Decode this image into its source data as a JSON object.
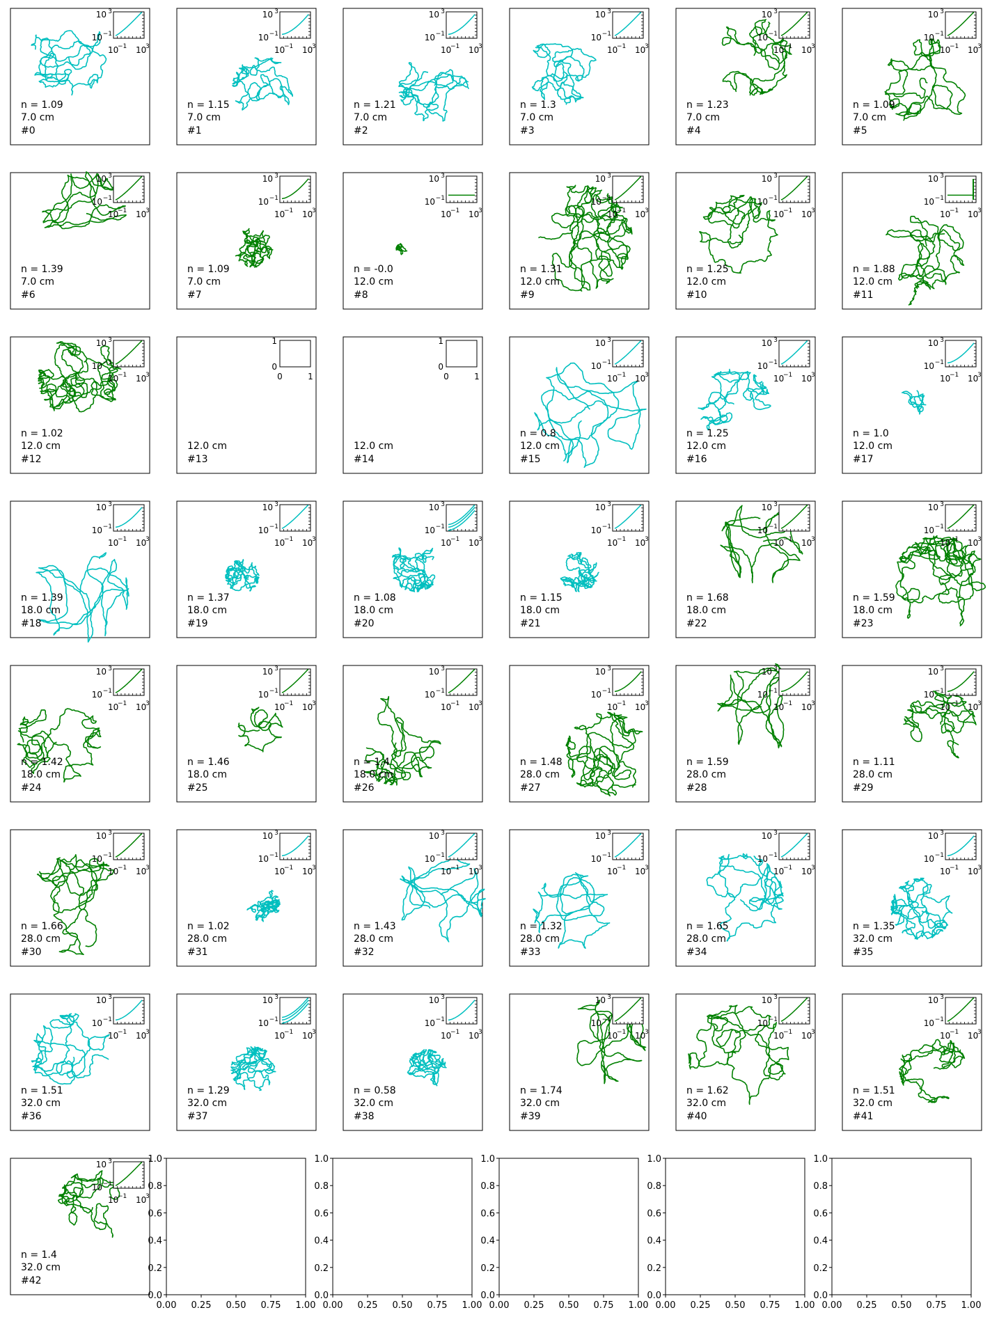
{
  "figure": {
    "colors": {
      "cyan": "#00BFBF",
      "green": "#008000",
      "axis": "#000000",
      "background": "#ffffff"
    },
    "inset_ticks": {
      "y_labels_loglog": [
        "10",
        "3",
        "10",
        "−1"
      ],
      "x_labels_loglog": [
        "10",
        "−1",
        "10",
        "3"
      ],
      "y_labels_empty": [
        "0",
        "1"
      ],
      "x_labels_empty": [
        "0",
        "1"
      ]
    },
    "empty_axes_ticks": [
      "0.0",
      "0.2",
      "0.4",
      "0.6",
      "0.8",
      "1.0"
    ],
    "empty_axes_xticks": [
      "0.00",
      "0.25",
      "0.50",
      "0.75",
      "1.00"
    ]
  },
  "chart_data": {
    "type": "line",
    "description_of_series": "grid of 2D trajectories with log-log MSD insets",
    "panels": [
      {
        "id": "#0",
        "n": "n = 1.09",
        "dist": "7.0 cm",
        "color": "cyan",
        "seed": 11,
        "style": "wander",
        "cx": 0.42,
        "cy": 0.35,
        "size": 0.28,
        "inset": "curve_a"
      },
      {
        "id": "#1",
        "n": "n = 1.15",
        "dist": "7.0 cm",
        "color": "cyan",
        "seed": 12,
        "style": "wander",
        "cx": 0.62,
        "cy": 0.58,
        "size": 0.22,
        "inset": "curve_b"
      },
      {
        "id": "#2",
        "n": "n = 1.21",
        "dist": "7.0 cm",
        "color": "cyan",
        "seed": 13,
        "style": "sparse",
        "cx": 0.65,
        "cy": 0.58,
        "size": 0.25,
        "inset": "curve_b"
      },
      {
        "id": "#3",
        "n": "n = 1.3",
        "dist": "7.0 cm",
        "color": "cyan",
        "seed": 14,
        "style": "wander",
        "cx": 0.38,
        "cy": 0.45,
        "size": 0.25,
        "inset": "curve_a"
      },
      {
        "id": "#4",
        "n": "n = 1.23",
        "dist": "7.0 cm",
        "color": "green",
        "seed": 15,
        "style": "wander",
        "cx": 0.55,
        "cy": 0.35,
        "size": 0.28,
        "inset": "curve_a"
      },
      {
        "id": "#5",
        "n": "n = 1.09",
        "dist": "7.0 cm",
        "color": "green",
        "seed": 16,
        "style": "wander",
        "cx": 0.62,
        "cy": 0.55,
        "size": 0.32,
        "inset": "curve_a"
      },
      {
        "id": "#6",
        "n": "n = 1.39",
        "dist": "7.0 cm",
        "color": "green",
        "seed": 17,
        "style": "line",
        "cx": 0.53,
        "cy": 0.3,
        "size": 0.3,
        "inset": "curve_a"
      },
      {
        "id": "#7",
        "n": "n = 1.09",
        "dist": "7.0 cm",
        "color": "green",
        "seed": 18,
        "style": "cluster",
        "cx": 0.55,
        "cy": 0.55,
        "size": 0.14,
        "inset": "curve_b"
      },
      {
        "id": "#8",
        "n": "n = -0.0",
        "dist": "12.0 cm",
        "color": "green",
        "seed": 19,
        "style": "tiny",
        "cx": 0.42,
        "cy": 0.56,
        "size": 0.04,
        "inset": "flat"
      },
      {
        "id": "#9",
        "n": "n = 1.31",
        "dist": "12.0 cm",
        "color": "green",
        "seed": 20,
        "style": "big",
        "cx": 0.5,
        "cy": 0.48,
        "size": 0.38,
        "inset": "curve_a"
      },
      {
        "id": "#10",
        "n": "n = 1.25",
        "dist": "12.0 cm",
        "color": "green",
        "seed": 21,
        "style": "wander",
        "cx": 0.45,
        "cy": 0.45,
        "size": 0.28,
        "inset": "curve_a"
      },
      {
        "id": "#11",
        "n": "n = 1.88",
        "dist": "12.0 cm",
        "color": "green",
        "seed": 22,
        "style": "split",
        "cx": 0.6,
        "cy": 0.55,
        "size": 0.3,
        "inset": "flat2"
      },
      {
        "id": "#12",
        "n": "n = 1.02",
        "dist": "12.0 cm",
        "color": "green",
        "seed": 23,
        "style": "big",
        "cx": 0.5,
        "cy": 0.3,
        "size": 0.3,
        "inset": "curve_a"
      },
      {
        "id": "#13",
        "n": "",
        "dist": "12.0 cm",
        "color": "none",
        "seed": 24,
        "style": "none",
        "cx": 0,
        "cy": 0,
        "size": 0,
        "inset": "empty"
      },
      {
        "id": "#14",
        "n": "",
        "dist": "12.0 cm",
        "color": "none",
        "seed": 25,
        "style": "none",
        "cx": 0,
        "cy": 0,
        "size": 0,
        "inset": "empty"
      },
      {
        "id": "#15",
        "n": "n = 0.8",
        "dist": "12.0 cm",
        "color": "cyan",
        "seed": 26,
        "style": "line",
        "cx": 0.58,
        "cy": 0.55,
        "size": 0.4,
        "inset": "curve_a"
      },
      {
        "id": "#16",
        "n": "n = 1.25",
        "dist": "12.0 cm",
        "color": "cyan",
        "seed": 27,
        "style": "wander",
        "cx": 0.42,
        "cy": 0.5,
        "size": 0.26,
        "inset": "curve_a"
      },
      {
        "id": "#17",
        "n": "n = 1.0",
        "dist": "12.0 cm",
        "color": "cyan",
        "seed": 28,
        "style": "tiny",
        "cx": 0.5,
        "cy": 0.48,
        "size": 0.1,
        "inset": "curve_b"
      },
      {
        "id": "#18",
        "n": "n = 1.39",
        "dist": "18.0 cm",
        "color": "cyan",
        "seed": 29,
        "style": "line",
        "cx": 0.5,
        "cy": 0.68,
        "size": 0.35,
        "inset": "curve_b"
      },
      {
        "id": "#19",
        "n": "n = 1.37",
        "dist": "18.0 cm",
        "color": "cyan",
        "seed": 30,
        "style": "cluster",
        "cx": 0.47,
        "cy": 0.55,
        "size": 0.12,
        "inset": "curve_a"
      },
      {
        "id": "#20",
        "n": "n = 1.08",
        "dist": "18.0 cm",
        "color": "cyan",
        "seed": 31,
        "style": "cluster",
        "cx": 0.52,
        "cy": 0.48,
        "size": 0.18,
        "inset": "multi"
      },
      {
        "id": "#21",
        "n": "n = 1.15",
        "dist": "18.0 cm",
        "color": "cyan",
        "seed": 32,
        "style": "cluster",
        "cx": 0.5,
        "cy": 0.52,
        "size": 0.14,
        "inset": "curve_a"
      },
      {
        "id": "#22",
        "n": "n = 1.68",
        "dist": "18.0 cm",
        "color": "green",
        "seed": 33,
        "style": "line",
        "cx": 0.62,
        "cy": 0.3,
        "size": 0.3,
        "inset": "curve_a"
      },
      {
        "id": "#23",
        "n": "n = 1.59",
        "dist": "18.0 cm",
        "color": "green",
        "seed": 34,
        "style": "big",
        "cx": 0.7,
        "cy": 0.6,
        "size": 0.34,
        "inset": "curve_a"
      },
      {
        "id": "#24",
        "n": "n = 1.42",
        "dist": "18.0 cm",
        "color": "green",
        "seed": 35,
        "style": "sparse",
        "cx": 0.35,
        "cy": 0.55,
        "size": 0.3,
        "inset": "curve_a"
      },
      {
        "id": "#25",
        "n": "n = 1.46",
        "dist": "18.0 cm",
        "color": "green",
        "seed": 36,
        "style": "loop",
        "cx": 0.6,
        "cy": 0.47,
        "size": 0.16,
        "inset": "curve_a"
      },
      {
        "id": "#26",
        "n": "n = 1.4",
        "dist": "18.0 cm",
        "color": "green",
        "seed": 37,
        "style": "sparse",
        "cx": 0.38,
        "cy": 0.55,
        "size": 0.32,
        "inset": "curve_a"
      },
      {
        "id": "#27",
        "n": "n = 1.48",
        "dist": "28.0 cm",
        "color": "green",
        "seed": 38,
        "style": "cluster",
        "cx": 0.7,
        "cy": 0.65,
        "size": 0.3,
        "inset": "curve_b"
      },
      {
        "id": "#28",
        "n": "n = 1.59",
        "dist": "28.0 cm",
        "color": "green",
        "seed": 39,
        "style": "line",
        "cx": 0.62,
        "cy": 0.3,
        "size": 0.32,
        "inset": "curve_b"
      },
      {
        "id": "#29",
        "n": "n = 1.11",
        "dist": "28.0 cm",
        "color": "green",
        "seed": 40,
        "style": "sparse",
        "cx": 0.7,
        "cy": 0.45,
        "size": 0.26,
        "inset": "curve_b"
      },
      {
        "id": "#30",
        "n": "n = 1.66",
        "dist": "28.0 cm",
        "color": "green",
        "seed": 41,
        "style": "sparse",
        "cx": 0.48,
        "cy": 0.55,
        "size": 0.36,
        "inset": "curve_a"
      },
      {
        "id": "#31",
        "n": "n = 1.02",
        "dist": "28.0 cm",
        "color": "cyan",
        "seed": 42,
        "style": "cluster",
        "cx": 0.62,
        "cy": 0.55,
        "size": 0.12,
        "inset": "curve_b"
      },
      {
        "id": "#32",
        "n": "n = 1.43",
        "dist": "28.0 cm",
        "color": "cyan",
        "seed": 43,
        "style": "line",
        "cx": 0.7,
        "cy": 0.5,
        "size": 0.32,
        "inset": "curve_a"
      },
      {
        "id": "#33",
        "n": "n = 1.32",
        "dist": "28.0 cm",
        "color": "cyan",
        "seed": 44,
        "style": "line",
        "cx": 0.45,
        "cy": 0.6,
        "size": 0.28,
        "inset": "curve_a"
      },
      {
        "id": "#34",
        "n": "n = 1.65",
        "dist": "28.0 cm",
        "color": "cyan",
        "seed": 45,
        "style": "sparse",
        "cx": 0.45,
        "cy": 0.5,
        "size": 0.32,
        "inset": "curve_a"
      },
      {
        "id": "#35",
        "n": "n = 1.35",
        "dist": "32.0 cm",
        "color": "cyan",
        "seed": 46,
        "style": "cluster",
        "cx": 0.57,
        "cy": 0.58,
        "size": 0.22,
        "inset": "curve_b"
      },
      {
        "id": "#36",
        "n": "n = 1.51",
        "dist": "32.0 cm",
        "color": "cyan",
        "seed": 47,
        "style": "sparse",
        "cx": 0.45,
        "cy": 0.45,
        "size": 0.3,
        "inset": "curve_b"
      },
      {
        "id": "#37",
        "n": "n = 1.29",
        "dist": "32.0 cm",
        "color": "cyan",
        "seed": 48,
        "style": "cluster",
        "cx": 0.55,
        "cy": 0.55,
        "size": 0.16,
        "inset": "multi"
      },
      {
        "id": "#38",
        "n": "n = 0.58",
        "dist": "32.0 cm",
        "color": "cyan",
        "seed": 49,
        "style": "cluster",
        "cx": 0.6,
        "cy": 0.55,
        "size": 0.14,
        "inset": "curve_b"
      },
      {
        "id": "#39",
        "n": "n = 1.74",
        "dist": "32.0 cm",
        "color": "green",
        "seed": 50,
        "style": "line",
        "cx": 0.68,
        "cy": 0.35,
        "size": 0.3,
        "inset": "curve_a"
      },
      {
        "id": "#40",
        "n": "n = 1.62",
        "dist": "32.0 cm",
        "color": "green",
        "seed": 51,
        "style": "sparse",
        "cx": 0.45,
        "cy": 0.45,
        "size": 0.36,
        "inset": "curve_a"
      },
      {
        "id": "#41",
        "n": "n = 1.51",
        "dist": "32.0 cm",
        "color": "green",
        "seed": 52,
        "style": "wander",
        "cx": 0.65,
        "cy": 0.55,
        "size": 0.24,
        "inset": "curve_a"
      },
      {
        "id": "#42",
        "n": "n = 1.4",
        "dist": "32.0 cm",
        "color": "green",
        "seed": 53,
        "style": "sparse",
        "cx": 0.6,
        "cy": 0.35,
        "size": 0.26,
        "inset": "curve_a"
      }
    ],
    "empty_axes_count": 5
  }
}
